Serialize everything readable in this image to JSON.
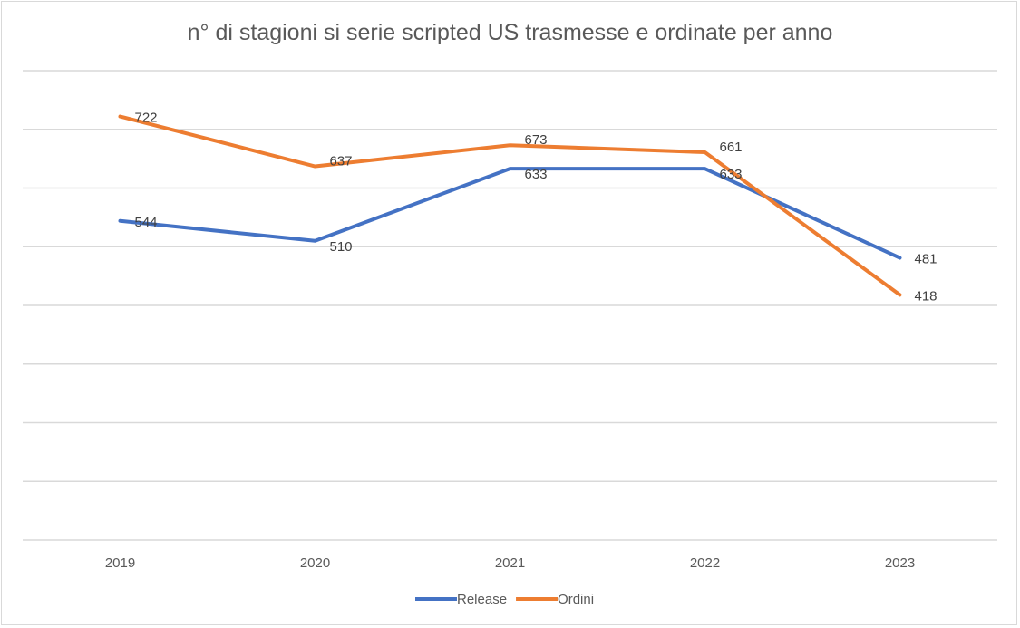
{
  "chart_data": {
    "type": "line",
    "title": "n° di stagioni si serie scripted US trasmesse  e ordinate per anno",
    "categories": [
      "2019",
      "2020",
      "2021",
      "2022",
      "2023"
    ],
    "series": [
      {
        "name": "Release",
        "values": [
          544,
          510,
          633,
          633,
          481
        ],
        "color": "#4472c4"
      },
      {
        "name": "Ordini",
        "values": [
          722,
          637,
          673,
          661,
          418
        ],
        "color": "#ed7d31"
      }
    ],
    "ylim": [
      0,
      800
    ],
    "y_gridlines": [
      100,
      200,
      300,
      400,
      500,
      600,
      700,
      800
    ],
    "grid": true,
    "y_tick_labels_shown": false,
    "legend_position": "bottom",
    "data_labels": true,
    "gridline_color": "#d9d9d9"
  }
}
